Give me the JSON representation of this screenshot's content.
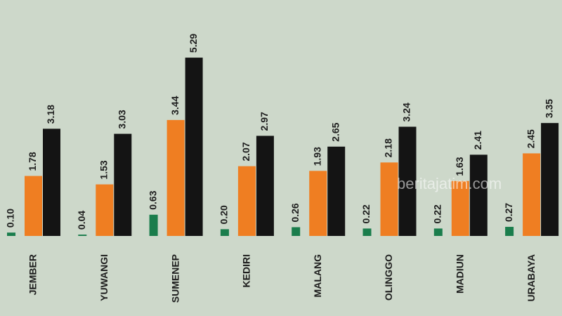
{
  "chart_data": {
    "type": "bar",
    "categories": [
      "JEMBER",
      "YUWANGI",
      "SUMENEP",
      "KEDIRI",
      "MALANG",
      "OLINGGO",
      "MADIUN",
      "URABAYA"
    ],
    "series": [
      {
        "color": "#1a7d4c",
        "values": [
          0.1,
          0.04,
          0.63,
          0.2,
          0.26,
          0.22,
          0.22,
          0.27
        ],
        "value_labels": [
          "0.10",
          "0.04",
          "0.63",
          "0.20",
          "0.26",
          "0.22",
          "0.22",
          "0.27"
        ]
      },
      {
        "color": "#ef7e22",
        "values": [
          1.78,
          1.53,
          3.44,
          2.07,
          1.93,
          2.18,
          1.63,
          2.45
        ],
        "value_labels": [
          "1.78",
          "1.53",
          "3.44",
          "2.07",
          "1.93",
          "2.18",
          "1.63",
          "2.45"
        ]
      },
      {
        "color": "#141414",
        "values": [
          3.18,
          3.03,
          5.29,
          2.97,
          2.65,
          3.24,
          2.41,
          3.35
        ],
        "value_labels": [
          "3.18",
          "3.03",
          "5.29",
          "2.97",
          "2.65",
          "3.24",
          "2.41",
          "3.35"
        ]
      }
    ],
    "watermark": "beritajatim.com"
  }
}
